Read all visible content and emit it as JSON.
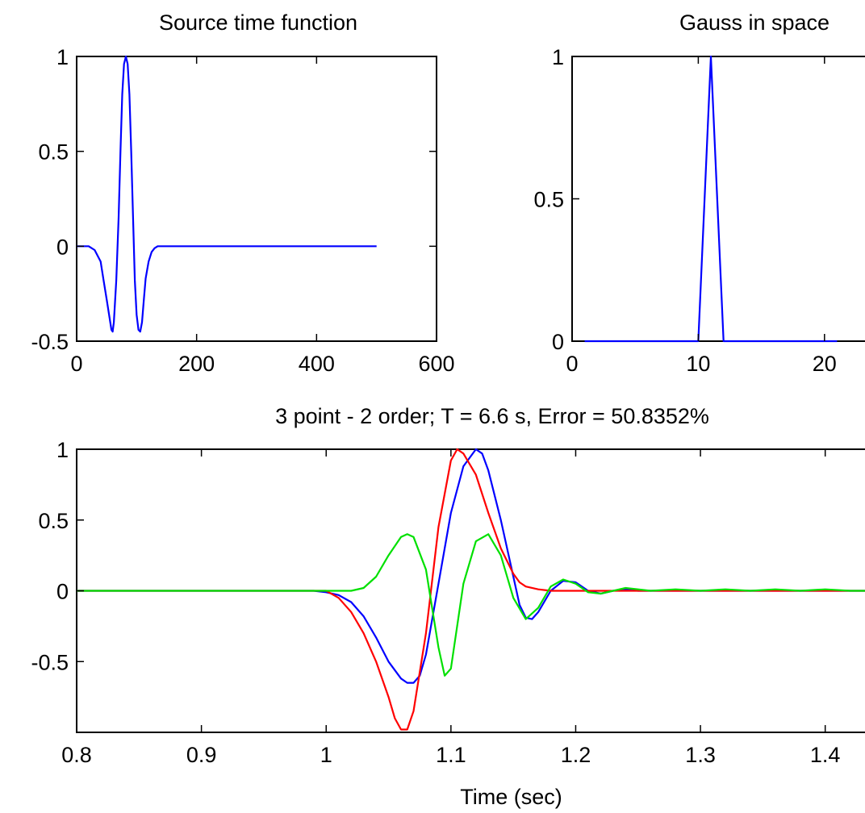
{
  "chart_data": [
    {
      "type": "line",
      "title": "Source time function",
      "xlabel": "",
      "ylabel": "",
      "xlim": [
        0,
        600
      ],
      "ylim": [
        -0.5,
        1
      ],
      "xticks": [
        0,
        200,
        400,
        600
      ],
      "xtick_labels": [
        "0",
        "200",
        "400",
        "600"
      ],
      "yticks": [
        -0.5,
        0,
        0.5,
        1
      ],
      "ytick_labels": [
        "-0.5",
        "0",
        "0.5",
        "1"
      ],
      "grid": false,
      "series": [
        {
          "color": "#0000ff",
          "x": [
            0,
            20,
            30,
            40,
            45,
            50,
            55,
            58,
            60,
            62,
            66,
            70,
            73,
            76,
            79,
            82,
            85,
            88,
            91,
            94,
            97,
            100,
            103,
            106,
            109,
            112,
            115,
            120,
            125,
            130,
            135,
            140,
            145,
            150,
            200,
            300,
            400,
            500
          ],
          "y": [
            0,
            0,
            -0.02,
            -0.08,
            -0.18,
            -0.28,
            -0.38,
            -0.44,
            -0.45,
            -0.4,
            -0.18,
            0.15,
            0.5,
            0.8,
            0.96,
            1.0,
            0.96,
            0.8,
            0.5,
            0.15,
            -0.18,
            -0.36,
            -0.44,
            -0.45,
            -0.4,
            -0.28,
            -0.17,
            -0.08,
            -0.03,
            -0.01,
            0,
            0,
            0,
            0,
            0,
            0,
            0,
            0
          ]
        }
      ]
    },
    {
      "type": "line",
      "title": "Gauss in space",
      "xlabel": "",
      "ylabel": "",
      "xlim": [
        0,
        25
      ],
      "ylim": [
        0,
        1
      ],
      "xticks": [
        0,
        10,
        20
      ],
      "xtick_labels": [
        "0",
        "10",
        "20"
      ],
      "yticks": [
        0,
        0.5,
        1
      ],
      "ytick_labels": [
        "0",
        "0.5",
        "1"
      ],
      "grid": false,
      "series": [
        {
          "color": "#0000ff",
          "x": [
            1,
            2,
            3,
            4,
            5,
            6,
            7,
            8,
            9,
            10,
            11,
            12,
            13,
            14,
            15,
            16,
            17,
            18,
            19,
            20,
            21
          ],
          "y": [
            0,
            0,
            0,
            0,
            0,
            0,
            0,
            0,
            0,
            0,
            1,
            0,
            0,
            0,
            0,
            0,
            0,
            0,
            0,
            0,
            0
          ]
        }
      ]
    },
    {
      "type": "line",
      "title": "3 point - 2 order; T = 6.6 s, Error = 50.8352%",
      "xlabel": "Time (sec)",
      "ylabel": "",
      "xlim": [
        0.8,
        1.45
      ],
      "ylim": [
        -1,
        1
      ],
      "xticks": [
        0.8,
        0.9,
        1.0,
        1.1,
        1.2,
        1.3,
        1.4
      ],
      "xtick_labels": [
        "0.8",
        "0.9",
        "1",
        "1.1",
        "1.2",
        "1.3",
        "1.4"
      ],
      "yticks": [
        -0.5,
        0,
        0.5,
        1
      ],
      "ytick_labels": [
        "-0.5",
        "0",
        "0.5",
        "1"
      ],
      "grid": false,
      "series": [
        {
          "color": "#0000ff",
          "x": [
            0.8,
            0.99,
            1.0,
            1.01,
            1.02,
            1.03,
            1.04,
            1.05,
            1.06,
            1.065,
            1.07,
            1.075,
            1.08,
            1.09,
            1.1,
            1.11,
            1.12,
            1.125,
            1.13,
            1.14,
            1.15,
            1.155,
            1.16,
            1.165,
            1.17,
            1.18,
            1.19,
            1.2,
            1.21,
            1.22,
            1.23,
            1.24,
            1.25,
            1.26,
            1.27,
            1.3,
            1.35,
            1.4,
            1.45
          ],
          "y": [
            0,
            0,
            -0.01,
            -0.03,
            -0.08,
            -0.18,
            -0.33,
            -0.5,
            -0.62,
            -0.65,
            -0.65,
            -0.6,
            -0.45,
            0.05,
            0.55,
            0.88,
            1.0,
            0.97,
            0.85,
            0.5,
            0.1,
            -0.1,
            -0.19,
            -0.2,
            -0.15,
            0.0,
            0.07,
            0.06,
            0.0,
            -0.02,
            0.0,
            0.01,
            0.0,
            0.0,
            0.0,
            0.0,
            0.0,
            0.0,
            0.0
          ]
        },
        {
          "color": "#ff0000",
          "x": [
            0.8,
            0.99,
            1.0,
            1.01,
            1.02,
            1.03,
            1.04,
            1.05,
            1.055,
            1.06,
            1.065,
            1.07,
            1.08,
            1.09,
            1.1,
            1.105,
            1.11,
            1.12,
            1.13,
            1.14,
            1.15,
            1.155,
            1.16,
            1.17,
            1.18,
            1.45
          ],
          "y": [
            0,
            0,
            0,
            -0.05,
            -0.15,
            -0.3,
            -0.5,
            -0.75,
            -0.9,
            -0.98,
            -0.98,
            -0.85,
            -0.3,
            0.45,
            0.92,
            1.0,
            0.97,
            0.82,
            0.55,
            0.3,
            0.12,
            0.06,
            0.03,
            0.01,
            0.0,
            0.0
          ]
        },
        {
          "color": "#00e000",
          "x": [
            0.8,
            1.0,
            1.02,
            1.03,
            1.04,
            1.05,
            1.06,
            1.065,
            1.07,
            1.08,
            1.09,
            1.095,
            1.1,
            1.11,
            1.12,
            1.13,
            1.14,
            1.15,
            1.16,
            1.17,
            1.18,
            1.19,
            1.2,
            1.21,
            1.22,
            1.23,
            1.24,
            1.25,
            1.26,
            1.28,
            1.3,
            1.32,
            1.34,
            1.36,
            1.38,
            1.4,
            1.42,
            1.45
          ],
          "y": [
            0,
            0,
            0,
            0.02,
            0.1,
            0.25,
            0.38,
            0.4,
            0.38,
            0.15,
            -0.4,
            -0.6,
            -0.55,
            0.05,
            0.35,
            0.4,
            0.25,
            -0.05,
            -0.2,
            -0.12,
            0.03,
            0.08,
            0.05,
            -0.01,
            -0.02,
            0.0,
            0.02,
            0.01,
            0.0,
            0.01,
            0.0,
            0.01,
            0.0,
            0.01,
            0.0,
            0.01,
            0.0,
            0.0
          ]
        }
      ]
    }
  ]
}
